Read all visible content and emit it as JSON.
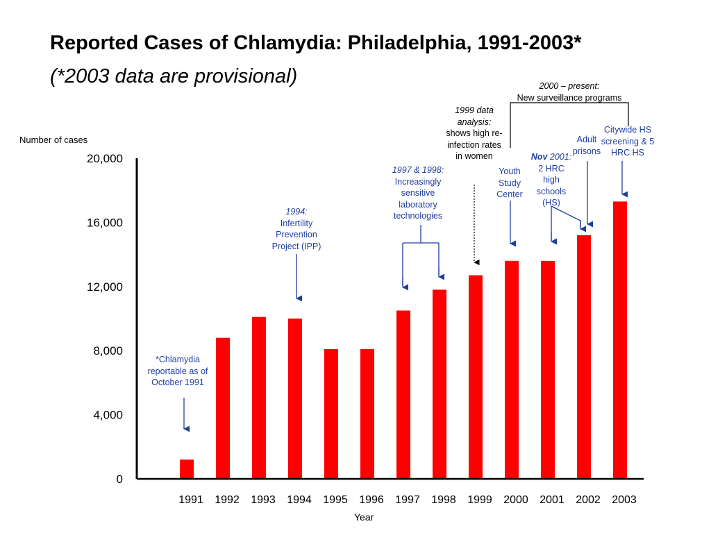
{
  "chart_data": {
    "type": "bar",
    "title": "Reported Cases of Chlamydia: Philadelphia, 1991-2003*",
    "subtitle": "(*2003 data are provisional)",
    "xlabel": "Year",
    "ylabel": "Number of cases",
    "categories": [
      "1991",
      "1992",
      "1993",
      "1994",
      "1995",
      "1996",
      "1997",
      "1998",
      "1999",
      "2000",
      "2001",
      "2002",
      "2003"
    ],
    "values": [
      1200,
      8800,
      10100,
      10000,
      8100,
      8100,
      10500,
      11800,
      12700,
      13600,
      13600,
      15200,
      17300
    ],
    "ylim": [
      0,
      20000
    ],
    "yticks": [
      0,
      4000,
      8000,
      12000,
      16000,
      20000
    ],
    "ytick_labels": [
      "0",
      "4,000",
      "8,000",
      "12,000",
      "16,000",
      "20,000"
    ],
    "bar_color": "#ff0000",
    "grid": false,
    "legend": "none"
  },
  "annotations": {
    "reportable": {
      "text": "*Chlamydia reportable as of October 1991"
    },
    "ipp": {
      "year": "1994:",
      "text": "Infertility Prevention Project (IPP)"
    },
    "lab": {
      "year": "1997 & 1998:",
      "text": "Increasingly sensitive laboratory technologies"
    },
    "analysis": {
      "year": "1999 data analysis:",
      "text": "shows high re-infection rates in women"
    },
    "surveillance": {
      "year": "2000 – present:",
      "text": "New surveillance programs"
    },
    "youth": {
      "text": "Youth Study Center"
    },
    "nov": {
      "month": "Nov",
      "year": "2001:",
      "text": "2 HRC high schools (HS)"
    },
    "adult": {
      "text": "Adult prisons"
    },
    "citywide": {
      "text": "Citywide HS screening & 5 HRC HS"
    }
  },
  "colors": {
    "bar": "#ff0000",
    "annotation": "#1f3ea0",
    "axis": "#000000"
  }
}
